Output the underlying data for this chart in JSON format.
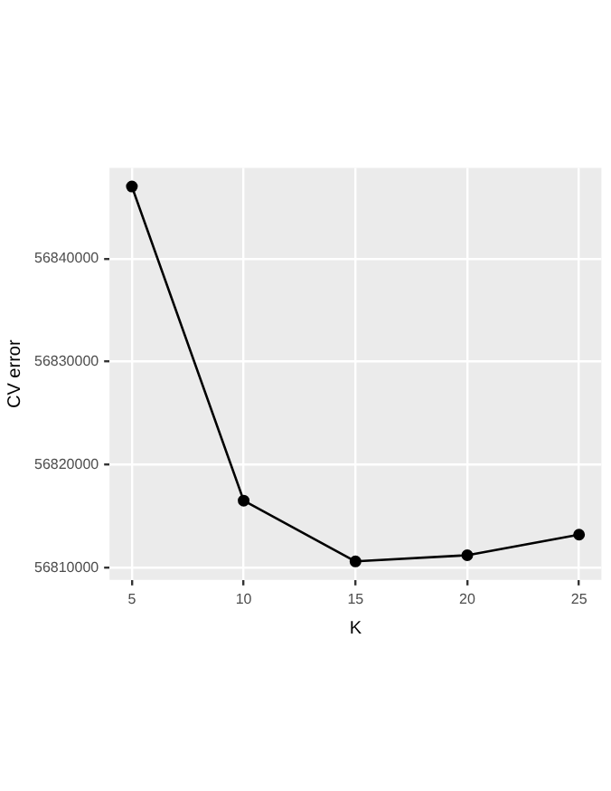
{
  "chart_data": {
    "type": "line",
    "xlabel": "K",
    "ylabel": "CV error",
    "x": [
      5,
      10,
      15,
      20,
      25
    ],
    "series": [
      {
        "color": "#000000",
        "values": [
          56847000,
          56816500,
          56810600,
          56811200,
          56813200
        ]
      }
    ],
    "xlim": [
      4,
      26
    ],
    "xticks": [
      5,
      10,
      15,
      20,
      25
    ],
    "ylim": [
      56808800,
      56848800
    ],
    "yticks": [
      56810000,
      56820000,
      56830000,
      56840000
    ],
    "grid": true,
    "legend": false,
    "marker": "circle",
    "line_style": "solid"
  }
}
